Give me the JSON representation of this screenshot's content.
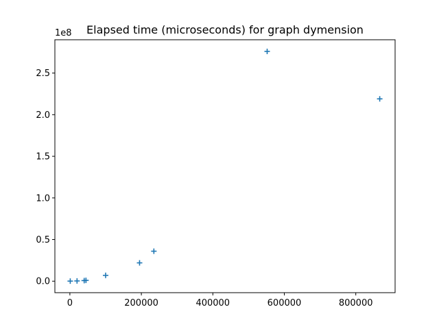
{
  "chart_data": {
    "type": "scatter",
    "title": "Elapsed time (microseconds) for graph dymension",
    "xlabel": "",
    "ylabel": "",
    "y_offset_label": "1e8",
    "marker": "+",
    "color": "#1f77b4",
    "xlim": [
      -42000,
      910000
    ],
    "ylim": [
      -0.138,
      2.9
    ],
    "x_ticks": [
      0,
      200000,
      400000,
      600000,
      800000
    ],
    "x_tick_labels": [
      "0",
      "200000",
      "400000",
      "600000",
      "800000"
    ],
    "y_ticks": [
      0.0,
      0.5,
      1.0,
      1.5,
      2.0,
      2.5
    ],
    "y_tick_labels": [
      "0.0",
      "0.5",
      "1.0",
      "1.5",
      "2.0",
      "2.5"
    ],
    "grid": false,
    "x": [
      1000,
      20000,
      40000,
      45000,
      100000,
      195000,
      235000,
      552000,
      867000
    ],
    "y": [
      0.001,
      0.003,
      0.007,
      0.01,
      0.07,
      0.22,
      0.36,
      2.76,
      2.19
    ]
  }
}
